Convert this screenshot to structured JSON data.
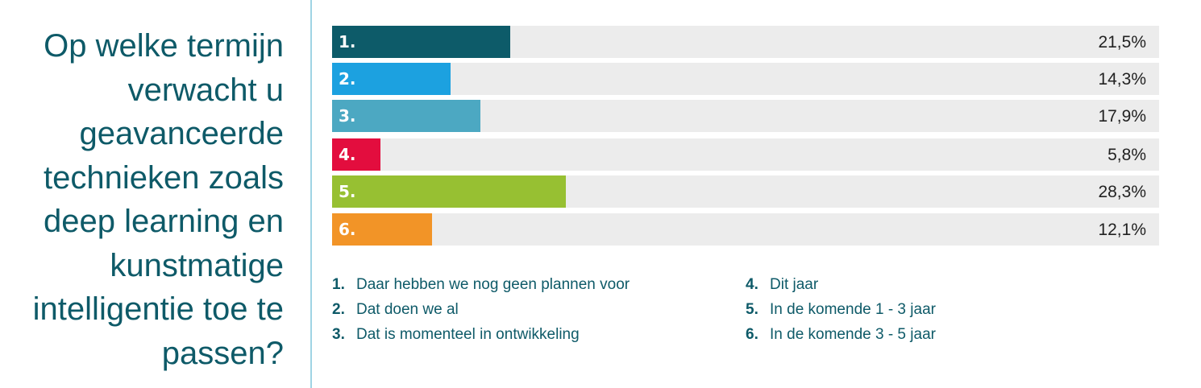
{
  "chart_data": {
    "type": "bar",
    "orientation": "horizontal",
    "title": "Op welke termijn verwacht u geavanceerde technieken zoals deep learning en kunstmatige intelligentie toe te passen?",
    "categories": [
      "1.",
      "2.",
      "3.",
      "4.",
      "5.",
      "6."
    ],
    "values": [
      21.5,
      14.3,
      17.9,
      5.8,
      28.3,
      12.1
    ],
    "value_labels": [
      "21,5%",
      "14,3%",
      "17,9%",
      "5,8%",
      "28,3%",
      "12,1%"
    ],
    "colors": [
      "#0d5b69",
      "#1ca1e0",
      "#4ca8c2",
      "#e30d3e",
      "#97c032",
      "#f29427"
    ],
    "xlim": [
      0,
      100
    ],
    "legend": [
      {
        "num": "1.",
        "label": "Daar hebben we nog geen plannen voor"
      },
      {
        "num": "2.",
        "label": "Dat doen we al"
      },
      {
        "num": "3.",
        "label": "Dat is momenteel in ontwikkeling"
      },
      {
        "num": "4.",
        "label": "Dit jaar"
      },
      {
        "num": "5.",
        "label": "In de komende 1 - 3 jaar"
      },
      {
        "num": "6.",
        "label": "In de komende 3 - 5 jaar"
      }
    ]
  }
}
